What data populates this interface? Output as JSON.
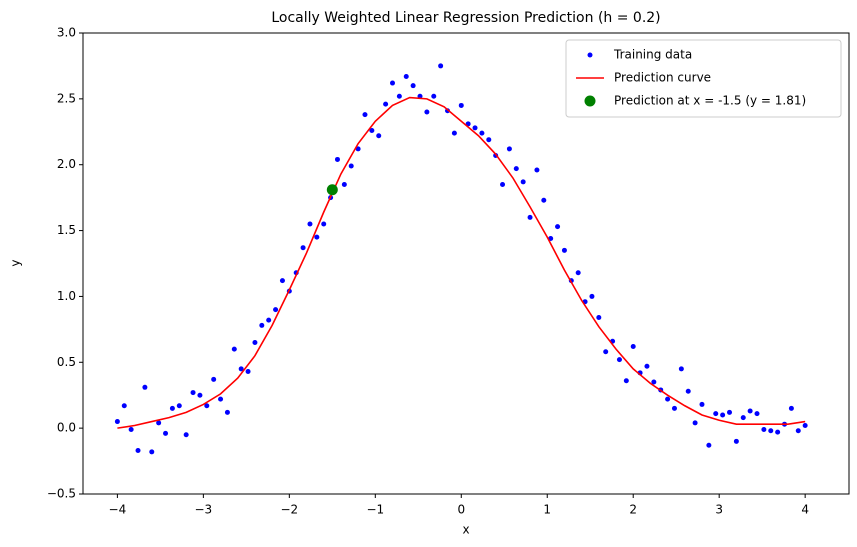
{
  "chart_data": {
    "type": "scatter",
    "title": "Locally Weighted Linear Regression Prediction (h = 0.2)",
    "x_label": "x",
    "y_label": "y",
    "xlim": [
      -4.4,
      4.51
    ],
    "ylim": [
      -0.5,
      3
    ],
    "xticks": [
      {
        "value": -4,
        "label": "−4"
      },
      {
        "value": -3,
        "label": "−3"
      },
      {
        "value": -2,
        "label": "−2"
      },
      {
        "value": -1,
        "label": "−1"
      },
      0,
      1,
      2,
      3,
      4
    ],
    "yticks": [
      {
        "value": -0.5,
        "label": "−0.5"
      },
      {
        "value": 0,
        "label": "0.0"
      },
      0.5,
      {
        "value": 1,
        "label": "1.0"
      },
      1.5,
      {
        "value": 2,
        "label": "2.0"
      },
      2.5,
      {
        "value": 3,
        "label": "3.0"
      }
    ],
    "grid": false,
    "legend": "upper right",
    "series": [
      {
        "name": "Training data",
        "color": "#0000ff",
        "kind": "markers",
        "x": [
          -4,
          -3.92,
          -3.84,
          -3.76,
          -3.68,
          -3.6,
          -3.52,
          -3.44,
          -3.36,
          -3.28,
          -3.2,
          -3.12,
          -3.04,
          -2.96,
          -2.88,
          -2.8,
          -2.72,
          -2.64,
          -2.56,
          -2.48,
          -2.4,
          -2.32,
          -2.24,
          -2.16,
          -2.08,
          -2,
          -1.92,
          -1.84,
          -1.76,
          -1.68,
          -1.6,
          -1.52,
          -1.44,
          -1.36,
          -1.28,
          -1.2,
          -1.12,
          -1.04,
          -0.96,
          -0.88,
          -0.8,
          -0.72,
          -0.64,
          -0.56,
          -0.48,
          -0.4,
          -0.32,
          -0.24,
          -0.16,
          -0.08,
          0,
          0.08,
          0.16,
          0.24,
          0.32,
          0.4,
          0.48,
          0.56,
          0.64,
          0.72,
          0.8,
          0.88,
          0.96,
          1.04,
          1.12,
          1.2,
          1.28,
          1.36,
          1.44,
          1.52,
          1.6,
          1.68,
          1.76,
          1.84,
          1.92,
          2,
          2.08,
          2.16,
          2.24,
          2.32,
          2.4,
          2.48,
          2.56,
          2.64,
          2.72,
          2.8,
          2.88,
          2.96,
          3.04,
          3.12,
          3.2,
          3.28,
          3.36,
          3.44,
          3.52,
          3.6,
          3.68,
          3.76,
          3.84,
          3.92,
          4
        ],
        "values": [
          0.05,
          0.17,
          -0.01,
          -0.17,
          0.31,
          -0.18,
          0.04,
          -0.04,
          0.15,
          0.17,
          -0.05,
          0.27,
          0.25,
          0.17,
          0.37,
          0.22,
          0.12,
          0.6,
          0.45,
          0.43,
          0.65,
          0.78,
          0.82,
          0.9,
          1.12,
          1.04,
          1.18,
          1.37,
          1.55,
          1.45,
          1.55,
          1.75,
          2.04,
          1.85,
          1.99,
          2.12,
          2.38,
          2.26,
          2.22,
          2.46,
          2.62,
          2.52,
          2.67,
          2.6,
          2.52,
          2.4,
          2.52,
          2.75,
          2.41,
          2.24,
          2.45,
          2.31,
          2.28,
          2.24,
          2.19,
          2.07,
          1.85,
          2.12,
          1.97,
          1.87,
          1.6,
          1.96,
          1.73,
          1.44,
          1.53,
          1.35,
          1.12,
          1.18,
          0.96,
          1,
          0.84,
          0.58,
          0.66,
          0.52,
          0.36,
          0.62,
          0.42,
          0.47,
          0.35,
          0.29,
          0.22,
          0.15,
          0.45,
          0.28,
          0.04,
          0.18,
          -0.13,
          0.11,
          0.1,
          0.12,
          -0.1,
          0.08,
          0.13,
          0.11,
          -0.01,
          -0.02,
          -0.03,
          0.03,
          0.15,
          -0.02,
          0.02
        ]
      },
      {
        "name": "Prediction curve",
        "color": "#ff0000",
        "kind": "line",
        "x": [
          -4,
          -3.8,
          -3.6,
          -3.4,
          -3.2,
          -3,
          -2.8,
          -2.6,
          -2.4,
          -2.2,
          -2,
          -1.8,
          -1.6,
          -1.4,
          -1.2,
          -1,
          -0.8,
          -0.6,
          -0.4,
          -0.2,
          0,
          0.2,
          0.4,
          0.6,
          0.8,
          1,
          1.2,
          1.4,
          1.6,
          1.8,
          2,
          2.2,
          2.4,
          2.6,
          2.8,
          3,
          3.2,
          3.4,
          3.6,
          3.8,
          4
        ],
        "values": [
          0,
          0.02,
          0.05,
          0.08,
          0.12,
          0.18,
          0.26,
          0.38,
          0.55,
          0.78,
          1.05,
          1.33,
          1.64,
          1.93,
          2.16,
          2.33,
          2.45,
          2.51,
          2.5,
          2.44,
          2.33,
          2.22,
          2.08,
          1.9,
          1.68,
          1.45,
          1.2,
          0.97,
          0.77,
          0.6,
          0.45,
          0.34,
          0.25,
          0.17,
          0.1,
          0.06,
          0.03,
          0.03,
          0.03,
          0.03,
          0.05
        ]
      },
      {
        "name": "Prediction at x = -1.5 (y = 1.81)",
        "color": "#008000",
        "kind": "point",
        "x": [
          -1.5
        ],
        "values": [
          1.81
        ]
      }
    ]
  }
}
